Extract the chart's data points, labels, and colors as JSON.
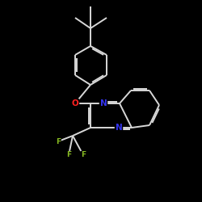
{
  "bg_color": "#000000",
  "bond_color": "#d8d8d8",
  "bond_width": 1.4,
  "atom_colors": {
    "O": "#ff2020",
    "N": "#3333ee",
    "F": "#88bb22",
    "C": "#d8d8d8"
  },
  "figsize": [
    2.5,
    2.5
  ],
  "dpi": 100,
  "xlim": [
    0,
    10
  ],
  "ylim": [
    0,
    10
  ]
}
